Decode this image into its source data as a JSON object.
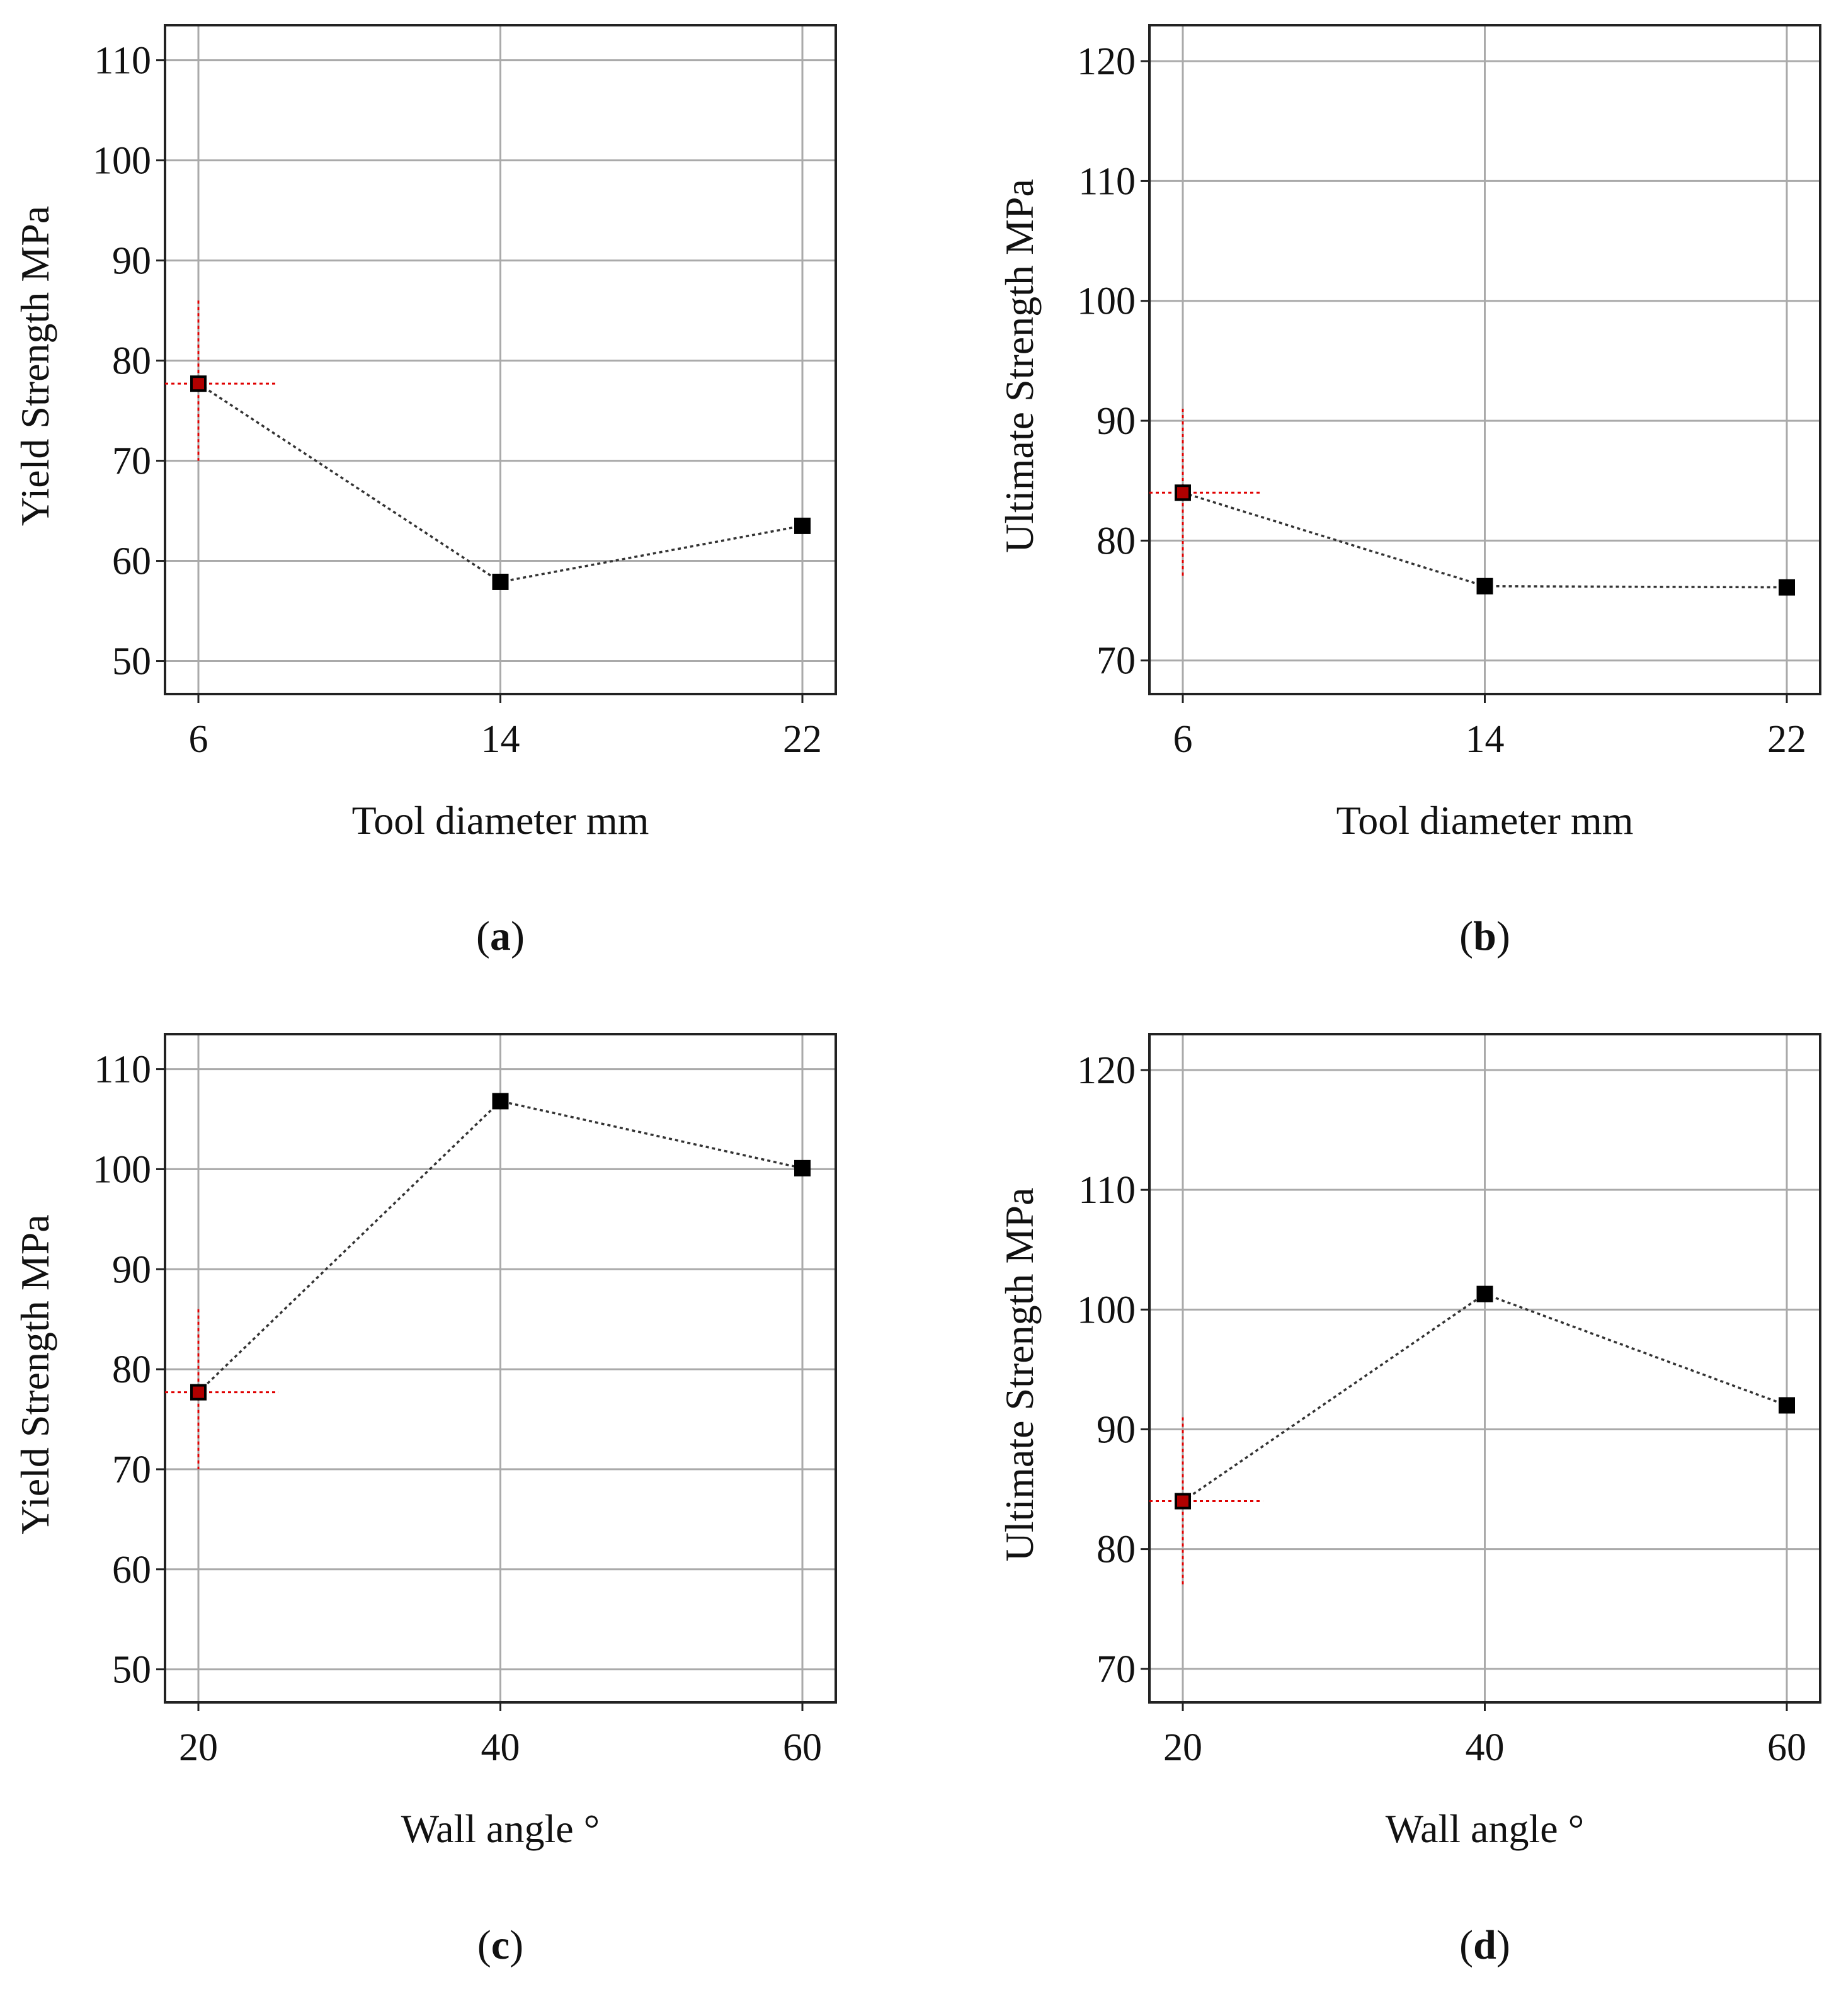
{
  "colors": {
    "grid": "#aaaaaa",
    "frame": "#222222",
    "series_line": "#333333",
    "marker": "#000000",
    "reference": "#e00000",
    "reference_marker_fill": "#b00000"
  },
  "chart_data": [
    {
      "panel": "a",
      "type": "line",
      "caption": "(a)",
      "caption_letter": "a",
      "xlabel": "Tool diameter mm",
      "ylabel": "Yield Strength MPa",
      "x_ticks": [
        "6",
        "14",
        "22"
      ],
      "y_ticks": [
        "50",
        "60",
        "70",
        "80",
        "90",
        "100",
        "110"
      ],
      "ylim": [
        46.7,
        113.5
      ],
      "x": [
        6,
        14,
        22
      ],
      "values": [
        77.7,
        57.9,
        63.5
      ],
      "reference_point": {
        "x": 6,
        "y": 77.7,
        "y_low": 70.0,
        "y_high": 86.0,
        "x_high": 8.1
      }
    },
    {
      "panel": "b",
      "type": "line",
      "caption": "(b)",
      "caption_letter": "b",
      "xlabel": "Tool diameter mm",
      "ylabel": "Ultimate Strength MPa",
      "x_ticks": [
        "6",
        "14",
        "22"
      ],
      "y_ticks": [
        "70",
        "80",
        "90",
        "100",
        "110",
        "120"
      ],
      "ylim": [
        67.2,
        123.0
      ],
      "x": [
        6,
        14,
        22
      ],
      "values": [
        84.0,
        76.2,
        76.1
      ],
      "reference_point": {
        "x": 6,
        "y": 84.0,
        "y_low": 77.0,
        "y_high": 91.0,
        "x_high": 8.1
      }
    },
    {
      "panel": "c",
      "type": "line",
      "caption": "(c)",
      "caption_letter": "c",
      "xlabel": "Wall angle °",
      "ylabel": "Yield Strength MPa",
      "x_ticks": [
        "20",
        "40",
        "60"
      ],
      "y_ticks": [
        "50",
        "60",
        "70",
        "80",
        "90",
        "100",
        "110"
      ],
      "ylim": [
        46.7,
        113.5
      ],
      "x": [
        20,
        40,
        60
      ],
      "values": [
        77.7,
        106.8,
        100.1
      ],
      "reference_point": {
        "x": 20,
        "y": 77.7,
        "y_low": 70.0,
        "y_high": 86.0,
        "x_high": 25.3
      }
    },
    {
      "panel": "d",
      "type": "line",
      "caption": "(d)",
      "caption_letter": "d",
      "xlabel": "Wall angle °",
      "ylabel": "Ultimate Strength MPa",
      "x_ticks": [
        "20",
        "40",
        "60"
      ],
      "y_ticks": [
        "70",
        "80",
        "90",
        "100",
        "110",
        "120"
      ],
      "ylim": [
        67.2,
        123.0
      ],
      "x": [
        20,
        40,
        60
      ],
      "values": [
        84.0,
        101.3,
        92.0
      ],
      "reference_point": {
        "x": 20,
        "y": 84.0,
        "y_low": 77.0,
        "y_high": 91.0,
        "x_high": 25.3
      }
    }
  ]
}
